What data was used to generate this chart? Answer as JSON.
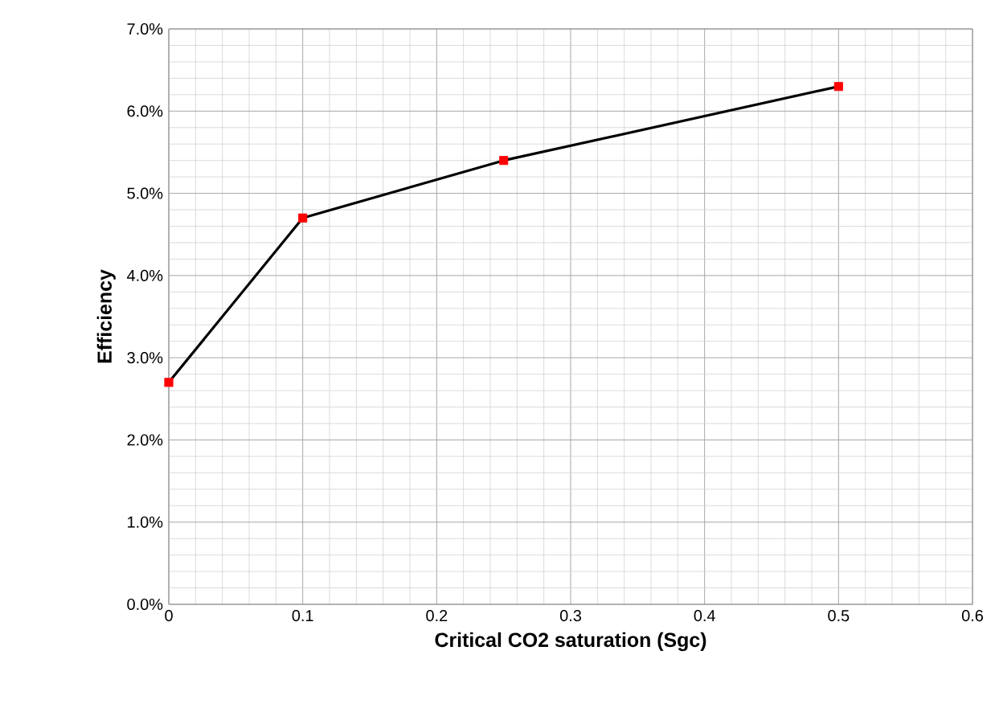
{
  "chart_data": {
    "type": "line",
    "xlabel": "Critical CO2 saturation (Sgc)",
    "ylabel": "Efficiency",
    "x": [
      0,
      0.1,
      0.25,
      0.5
    ],
    "series": [
      {
        "color": "#000000",
        "colors": [
          "#ff0000",
          "#ff0000",
          "#ff0000",
          "#ff0000"
        ],
        "values": [
          2.7,
          4.7,
          5.4,
          6.3
        ]
      }
    ],
    "xlim": [
      0,
      0.6
    ],
    "xticks": [
      0,
      0.1,
      0.2,
      0.3,
      0.4,
      0.5,
      0.6
    ],
    "ylim": [
      0,
      7
    ],
    "yticks": [
      {
        "value": 0,
        "label": "0.0%"
      },
      {
        "value": 1,
        "label": "1.0%"
      },
      {
        "value": 2,
        "label": "2.0%"
      },
      {
        "value": 3,
        "label": "3.0%"
      },
      {
        "value": 4,
        "label": "4.0%"
      },
      {
        "value": 5,
        "label": "5.0%"
      },
      {
        "value": 6,
        "label": "6.0%"
      },
      {
        "value": 7,
        "label": "7.0%"
      }
    ],
    "grid": true,
    "marker": "square",
    "line_style": "solid"
  }
}
